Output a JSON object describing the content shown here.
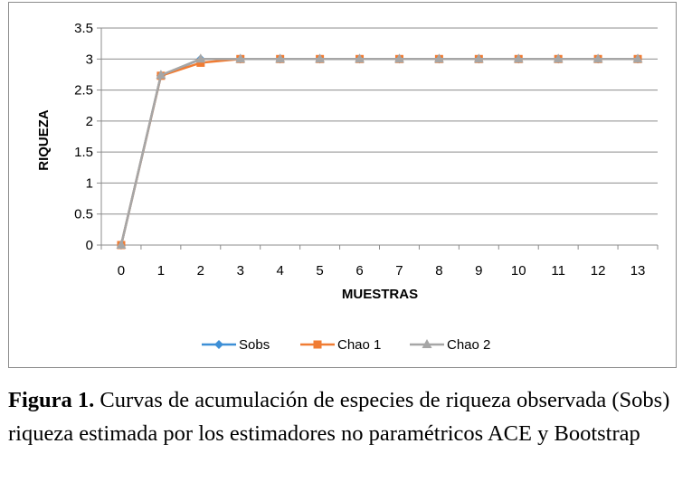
{
  "chart_data": {
    "type": "line",
    "xlabel": "MUESTRAS",
    "ylabel": "RIQUEZA",
    "x": [
      0,
      1,
      2,
      3,
      4,
      5,
      6,
      7,
      8,
      9,
      10,
      11,
      12,
      13
    ],
    "ylim": [
      0,
      3.5
    ],
    "yticks": [
      "0",
      "0.5",
      "1",
      "1.5",
      "2",
      "2.5",
      "3",
      "3.5"
    ],
    "ytick_values": [
      0,
      0.5,
      1,
      1.5,
      2,
      2.5,
      3,
      3.5
    ],
    "xticks": [
      "0",
      "1",
      "2",
      "3",
      "4",
      "5",
      "6",
      "7",
      "8",
      "9",
      "10",
      "11",
      "12",
      "13"
    ],
    "grid": true,
    "legend_position": "bottom",
    "series": [
      {
        "name": "Sobs",
        "color": "#3d8fd6",
        "marker": "diamond",
        "values": [
          0,
          2.73,
          3,
          3,
          3,
          3,
          3,
          3,
          3,
          3,
          3,
          3,
          3,
          3
        ]
      },
      {
        "name": "Chao 1",
        "color": "#f07c33",
        "marker": "square",
        "values": [
          0,
          2.73,
          2.94,
          3,
          3,
          3,
          3,
          3,
          3,
          3,
          3,
          3,
          3,
          3
        ]
      },
      {
        "name": "Chao 2",
        "color": "#a6a6a6",
        "marker": "triangle",
        "values": [
          0,
          2.74,
          3,
          3,
          3,
          3,
          3,
          3,
          3,
          3,
          3,
          3,
          3,
          3
        ]
      }
    ]
  },
  "caption": {
    "label": "Figura 1.",
    "text": " Curvas de acumulación de especies de riqueza observada (Sobs) riqueza estimada por los estimadores no paramétricos ACE y Bootstrap"
  }
}
